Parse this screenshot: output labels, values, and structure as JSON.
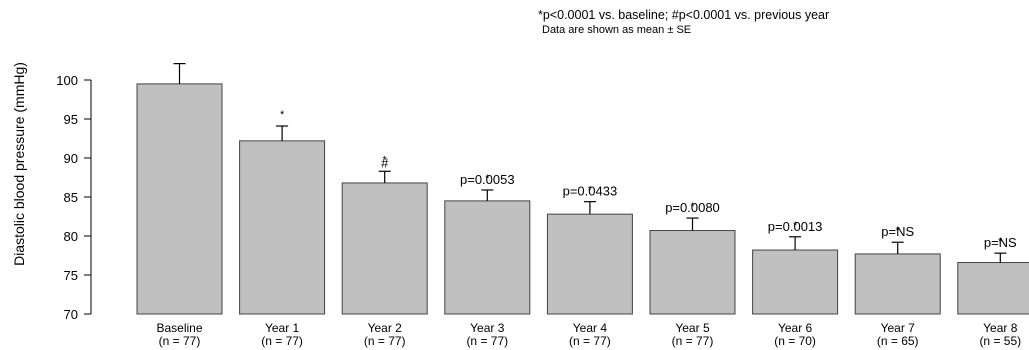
{
  "chart_data": {
    "type": "bar",
    "title": "",
    "xlabel": "",
    "ylabel": "Diastolic blood pressure (mmHg)",
    "ylim": [
      70,
      102
    ],
    "yticks": [
      70,
      75,
      80,
      85,
      90,
      95,
      100
    ],
    "grid": false,
    "legend_note_line1": "*p<0.0001 vs. baseline; #p<0.0001 vs. previous year",
    "legend_note_line2": "Data are shown as mean ± SE",
    "legend_placement": "top-right",
    "bar_color": "#c0c0c0",
    "categories": [
      "Baseline",
      "Year  1",
      "Year  2",
      "Year  3",
      "Year  4",
      "Year  5",
      "Year  6",
      "Year  7",
      "Year  8"
    ],
    "n_labels": [
      "(n = 77)",
      "(n = 77)",
      "(n = 77)",
      "(n = 77)",
      "(n = 77)",
      "(n = 77)",
      "(n = 70)",
      "(n = 65)",
      "(n = 55)"
    ],
    "values": [
      99.5,
      92.2,
      86.8,
      84.5,
      82.8,
      80.7,
      78.2,
      77.7,
      76.6
    ],
    "errors": [
      2.6,
      1.9,
      1.5,
      1.4,
      1.6,
      1.6,
      1.7,
      1.5,
      1.2
    ],
    "stars": [
      "",
      "*",
      "*",
      "*",
      "*",
      "*",
      "*",
      "*",
      "*"
    ],
    "marks": [
      "",
      "",
      "#",
      "p=0.0053",
      "p=0.0433",
      "p=0.0080",
      "p=0.0013",
      "p=NS",
      "p=NS"
    ]
  }
}
